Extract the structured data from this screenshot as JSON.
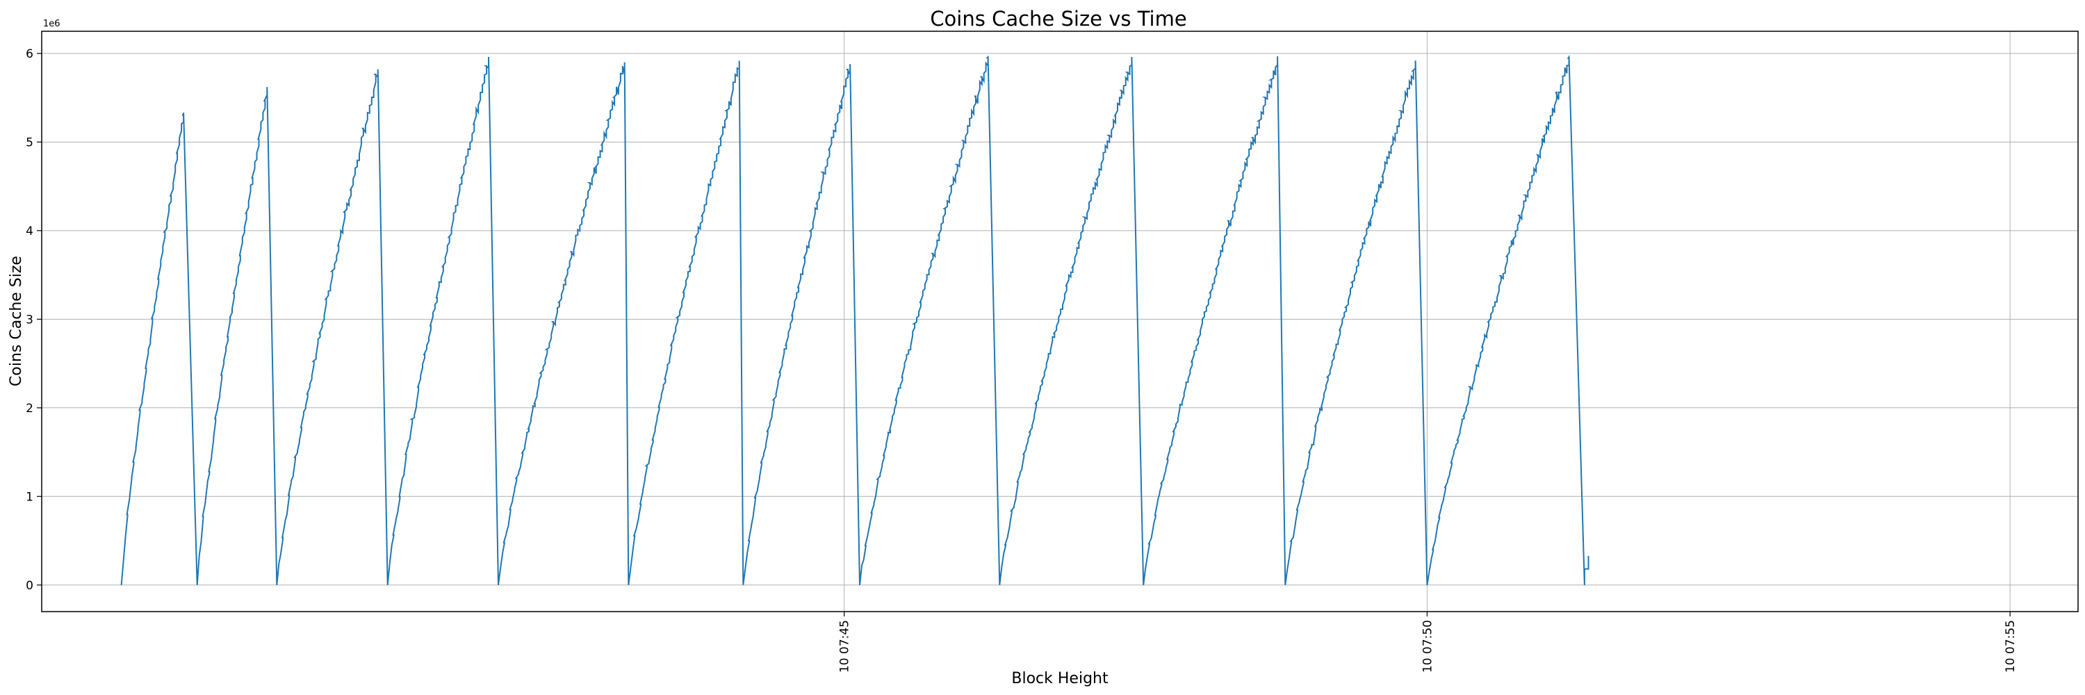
{
  "chart_data": {
    "type": "line",
    "title": "Coins Cache Size vs Time",
    "xlabel": "Block Height",
    "ylabel": "Coins Cache Size",
    "y_offset_label": "1e6",
    "ylim": [
      -300000,
      6250000
    ],
    "y_ticks": [
      0,
      1000000,
      2000000,
      3000000,
      4000000,
      5000000,
      6000000
    ],
    "y_tick_labels": [
      "0",
      "1",
      "2",
      "3",
      "4",
      "5",
      "6"
    ],
    "x_range_minutes": [
      "2024-01-10 07:38:07",
      "2024-01-10 07:55:35"
    ],
    "x_ticks": [
      "10 07:45",
      "10 07:50",
      "10 07:55"
    ],
    "grid": true,
    "line_color": "#1f77b4",
    "series": [
      {
        "cycles": [
          {
            "start": "07:38:48",
            "peak_time": "07:39:20",
            "peak": 5330000
          },
          {
            "start": "07:39:27",
            "peak_time": "07:40:03",
            "peak": 5620000
          },
          {
            "start": "07:40:08",
            "peak_time": "07:41:00",
            "peak": 5820000
          },
          {
            "start": "07:41:05",
            "peak_time": "07:41:57",
            "peak": 5960000
          },
          {
            "start": "07:42:02",
            "peak_time": "07:43:07",
            "peak": 5900000
          },
          {
            "start": "07:43:09",
            "peak_time": "07:44:06",
            "peak": 5910000
          },
          {
            "start": "07:44:08",
            "peak_time": "07:45:03",
            "peak": 5880000
          },
          {
            "start": "07:45:08",
            "peak_time": "07:46:14",
            "peak": 5960000
          },
          {
            "start": "07:46:20",
            "peak_time": "07:47:28",
            "peak": 5960000
          },
          {
            "start": "07:47:34",
            "peak_time": "07:48:43",
            "peak": 5960000
          },
          {
            "start": "07:48:47",
            "peak_time": "07:49:54",
            "peak": 5920000
          },
          {
            "start": "07:50:00",
            "peak_time": "07:51:13",
            "peak": 5960000
          },
          {
            "start": "07:51:21",
            "peak_time": null,
            "peak": 330000
          }
        ]
      }
    ]
  }
}
